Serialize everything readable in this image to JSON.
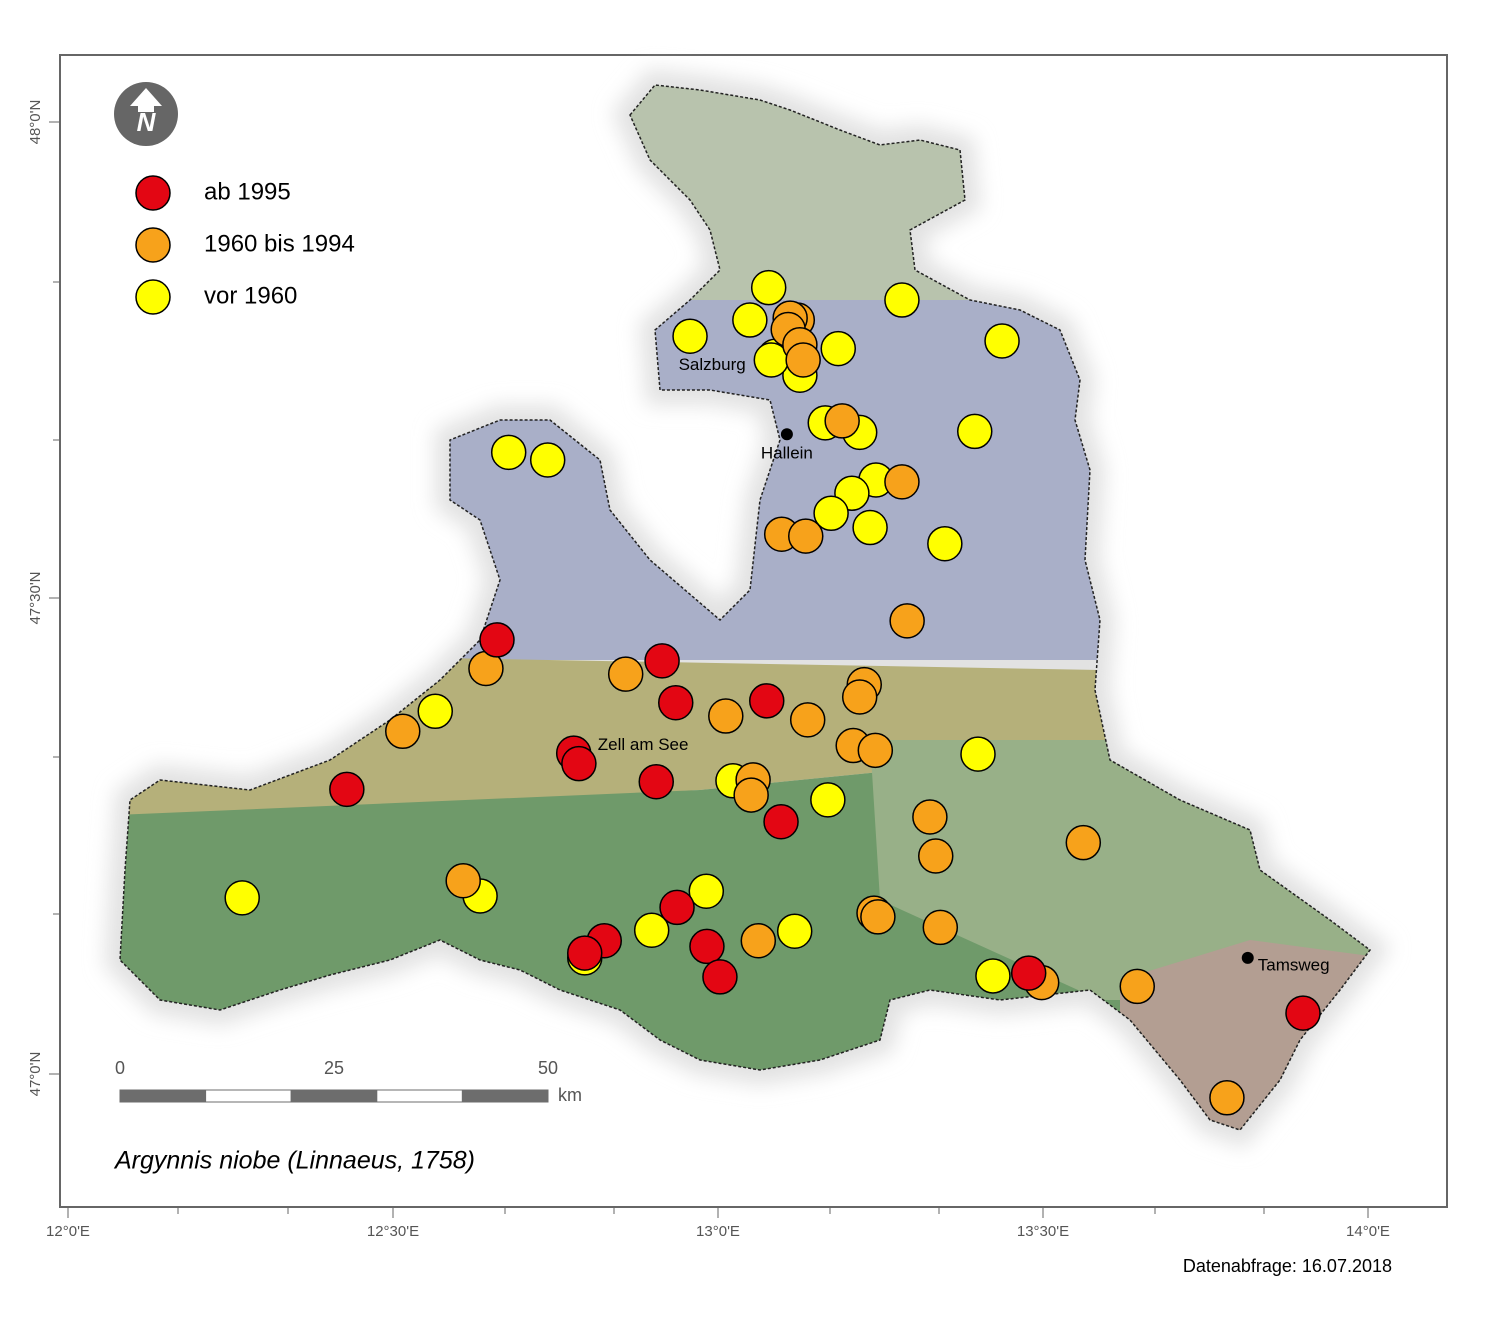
{
  "map": {
    "legend": [
      {
        "label": "ab 1995",
        "color": "#e30613"
      },
      {
        "label": "1960 bis 1994",
        "color": "#f7a21b"
      },
      {
        "label": "vor 1960",
        "color": "#ffff00"
      }
    ],
    "xticks": [
      {
        "value": 12,
        "label": "12°0'E"
      },
      {
        "value": 12.5,
        "label": "12°30'E"
      },
      {
        "value": 13,
        "label": "13°0'E"
      },
      {
        "value": 13.5,
        "label": "13°30'E"
      },
      {
        "value": 14,
        "label": "14°0'E"
      }
    ],
    "yticks": [
      {
        "value": 48,
        "label": "48°0'N"
      },
      {
        "value": 47.5,
        "label": "47°30'N"
      },
      {
        "value": 47,
        "label": "47°0'N"
      }
    ],
    "places": [
      {
        "name": "Salzburg",
        "lon": 12.991,
        "lat": 47.744,
        "marker": false
      },
      {
        "name": "Hallein",
        "lon": 13.106,
        "lat": 47.672,
        "marker": true
      },
      {
        "name": "Zell am See",
        "lon": 12.815,
        "lat": 47.345,
        "marker": false
      },
      {
        "name": "Tamsweg",
        "lon": 13.815,
        "lat": 47.122,
        "marker": true
      }
    ],
    "points": [
      {
        "lon": 13.078,
        "lat": 47.826,
        "group": 2
      },
      {
        "lon": 13.049,
        "lat": 47.792,
        "group": 2
      },
      {
        "lon": 12.957,
        "lat": 47.775,
        "group": 2
      },
      {
        "lon": 13.185,
        "lat": 47.762,
        "group": 2
      },
      {
        "lon": 13.283,
        "lat": 47.813,
        "group": 2
      },
      {
        "lon": 13.437,
        "lat": 47.77,
        "group": 2
      },
      {
        "lon": 13.088,
        "lat": 47.754,
        "group": 2
      },
      {
        "lon": 13.126,
        "lat": 47.734,
        "group": 2
      },
      {
        "lon": 13.082,
        "lat": 47.75,
        "group": 2
      },
      {
        "lon": 13.165,
        "lat": 47.684,
        "group": 2
      },
      {
        "lon": 13.218,
        "lat": 47.674,
        "group": 2
      },
      {
        "lon": 13.395,
        "lat": 47.675,
        "group": 2
      },
      {
        "lon": 12.678,
        "lat": 47.653,
        "group": 2
      },
      {
        "lon": 12.738,
        "lat": 47.645,
        "group": 2
      },
      {
        "lon": 13.243,
        "lat": 47.624,
        "group": 2
      },
      {
        "lon": 13.206,
        "lat": 47.61,
        "group": 2
      },
      {
        "lon": 13.174,
        "lat": 47.589,
        "group": 2
      },
      {
        "lon": 13.234,
        "lat": 47.574,
        "group": 2
      },
      {
        "lon": 13.349,
        "lat": 47.557,
        "group": 2
      },
      {
        "lon": 12.565,
        "lat": 47.381,
        "group": 2
      },
      {
        "lon": 13.4,
        "lat": 47.336,
        "group": 2
      },
      {
        "lon": 13.023,
        "lat": 47.308,
        "group": 2
      },
      {
        "lon": 13.169,
        "lat": 47.288,
        "group": 2
      },
      {
        "lon": 12.268,
        "lat": 47.185,
        "group": 2
      },
      {
        "lon": 12.634,
        "lat": 47.187,
        "group": 2
      },
      {
        "lon": 12.982,
        "lat": 47.192,
        "group": 2
      },
      {
        "lon": 12.898,
        "lat": 47.151,
        "group": 2
      },
      {
        "lon": 13.118,
        "lat": 47.15,
        "group": 2
      },
      {
        "lon": 13.423,
        "lat": 47.103,
        "group": 2
      },
      {
        "lon": 12.795,
        "lat": 47.122,
        "group": 2
      },
      {
        "lon": 13.122,
        "lat": 47.792,
        "group": 1
      },
      {
        "lon": 13.111,
        "lat": 47.794,
        "group": 1
      },
      {
        "lon": 13.108,
        "lat": 47.782,
        "group": 1
      },
      {
        "lon": 13.126,
        "lat": 47.766,
        "group": 1
      },
      {
        "lon": 13.131,
        "lat": 47.75,
        "group": 1
      },
      {
        "lon": 13.191,
        "lat": 47.686,
        "group": 1
      },
      {
        "lon": 13.283,
        "lat": 47.622,
        "group": 1
      },
      {
        "lon": 13.098,
        "lat": 47.567,
        "group": 1
      },
      {
        "lon": 13.135,
        "lat": 47.565,
        "group": 1
      },
      {
        "lon": 13.291,
        "lat": 47.476,
        "group": 1
      },
      {
        "lon": 12.643,
        "lat": 47.426,
        "group": 1
      },
      {
        "lon": 12.858,
        "lat": 47.42,
        "group": 1
      },
      {
        "lon": 13.225,
        "lat": 47.409,
        "group": 1
      },
      {
        "lon": 13.218,
        "lat": 47.396,
        "group": 1
      },
      {
        "lon": 13.012,
        "lat": 47.376,
        "group": 1
      },
      {
        "lon": 13.138,
        "lat": 47.372,
        "group": 1
      },
      {
        "lon": 12.515,
        "lat": 47.36,
        "group": 1
      },
      {
        "lon": 13.208,
        "lat": 47.345,
        "group": 1
      },
      {
        "lon": 13.242,
        "lat": 47.34,
        "group": 1
      },
      {
        "lon": 13.054,
        "lat": 47.309,
        "group": 1
      },
      {
        "lon": 13.051,
        "lat": 47.293,
        "group": 1
      },
      {
        "lon": 13.326,
        "lat": 47.27,
        "group": 1
      },
      {
        "lon": 13.335,
        "lat": 47.229,
        "group": 1
      },
      {
        "lon": 13.562,
        "lat": 47.243,
        "group": 1
      },
      {
        "lon": 12.608,
        "lat": 47.203,
        "group": 1
      },
      {
        "lon": 13.24,
        "lat": 47.169,
        "group": 1
      },
      {
        "lon": 13.246,
        "lat": 47.165,
        "group": 1
      },
      {
        "lon": 13.342,
        "lat": 47.154,
        "group": 1
      },
      {
        "lon": 13.062,
        "lat": 47.14,
        "group": 1
      },
      {
        "lon": 13.498,
        "lat": 47.096,
        "group": 1
      },
      {
        "lon": 13.645,
        "lat": 47.092,
        "group": 1
      },
      {
        "lon": 13.783,
        "lat": 46.975,
        "group": 1
      },
      {
        "lon": 12.66,
        "lat": 47.456,
        "group": 0
      },
      {
        "lon": 12.914,
        "lat": 47.434,
        "group": 0
      },
      {
        "lon": 12.935,
        "lat": 47.39,
        "group": 0
      },
      {
        "lon": 13.075,
        "lat": 47.392,
        "group": 0
      },
      {
        "lon": 12.778,
        "lat": 47.337,
        "group": 0
      },
      {
        "lon": 12.786,
        "lat": 47.326,
        "group": 0
      },
      {
        "lon": 12.429,
        "lat": 47.299,
        "group": 0
      },
      {
        "lon": 12.905,
        "lat": 47.307,
        "group": 0
      },
      {
        "lon": 13.097,
        "lat": 47.265,
        "group": 0
      },
      {
        "lon": 12.937,
        "lat": 47.175,
        "group": 0
      },
      {
        "lon": 12.825,
        "lat": 47.14,
        "group": 0
      },
      {
        "lon": 12.795,
        "lat": 47.127,
        "group": 0
      },
      {
        "lon": 12.983,
        "lat": 47.134,
        "group": 0
      },
      {
        "lon": 13.003,
        "lat": 47.102,
        "group": 0
      },
      {
        "lon": 13.478,
        "lat": 47.106,
        "group": 0
      },
      {
        "lon": 13.9,
        "lat": 47.064,
        "group": 0
      }
    ],
    "scale": {
      "ticks": [
        0,
        25,
        50
      ],
      "unit": "km"
    },
    "species": "Argynnis niobe (Linnaeus, 1758)",
    "query_note": "Datenabfrage: 16.07.2018"
  }
}
